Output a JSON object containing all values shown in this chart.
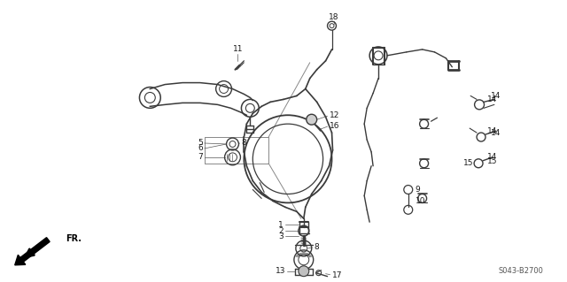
{
  "bg_color": "#ffffff",
  "line_color": "#3a3a3a",
  "label_color": "#1a1a1a",
  "diagram_code": "S043-B2700",
  "figsize": [
    6.4,
    3.19
  ],
  "dpi": 100
}
